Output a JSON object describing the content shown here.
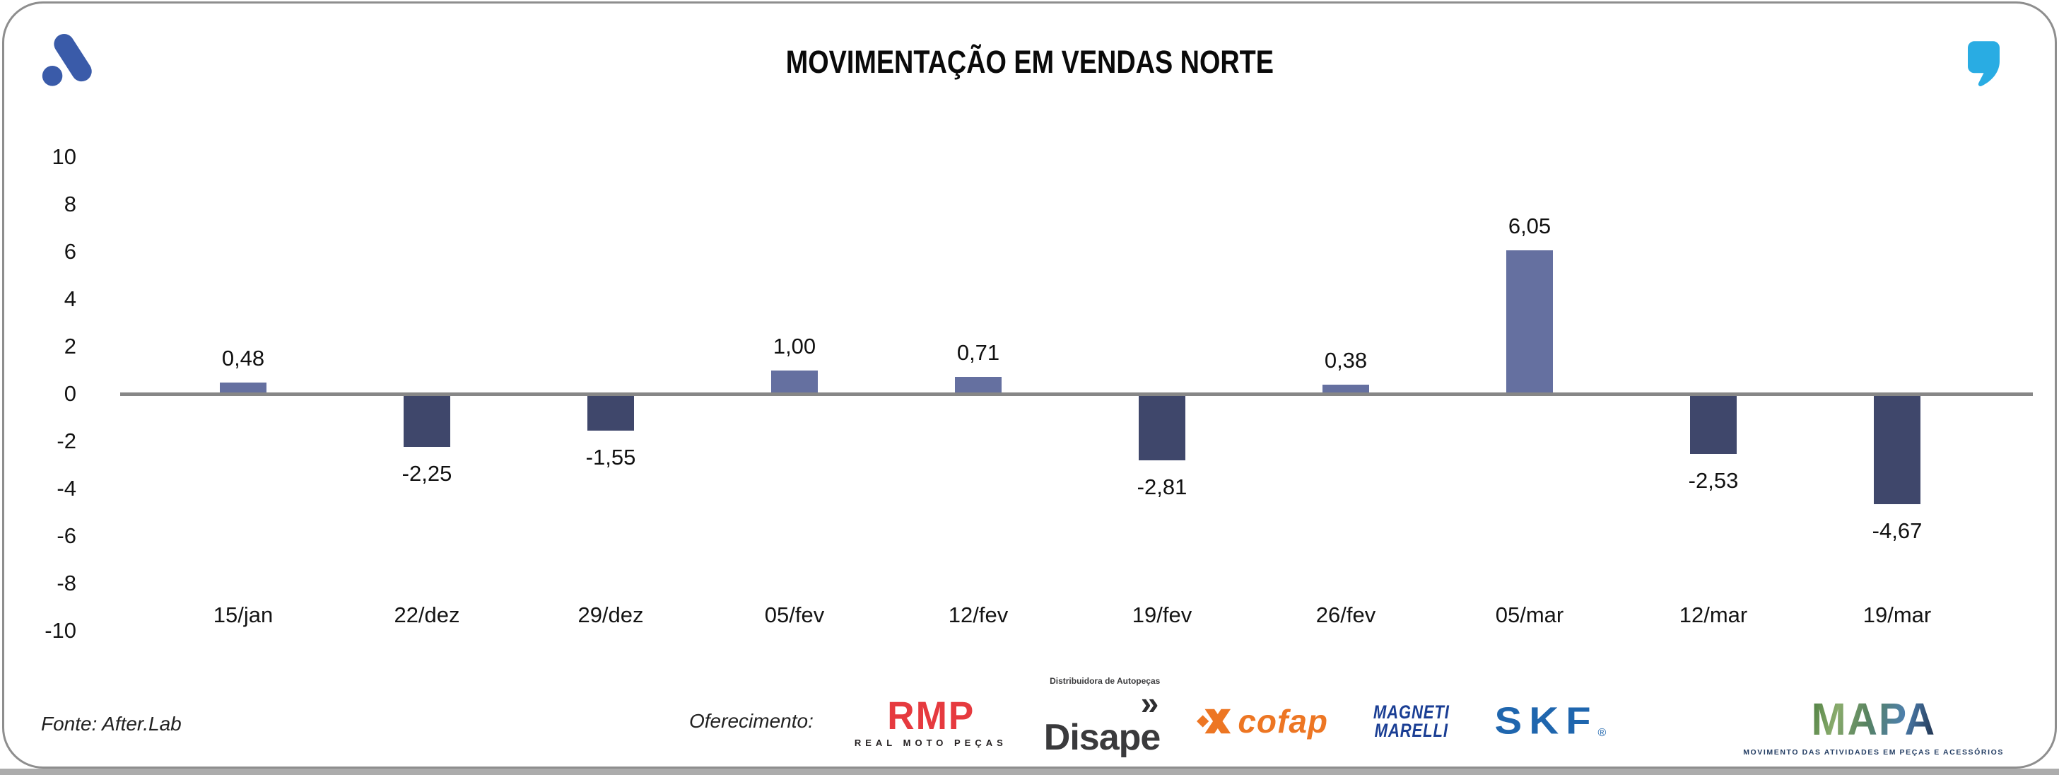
{
  "header": {
    "title": "MOVIMENTAÇÃO EM VENDAS NORTE"
  },
  "chart_data": {
    "type": "bar",
    "title": "MOVIMENTAÇÃO EM VENDAS NORTE",
    "categories": [
      "15/jan",
      "22/dez",
      "29/dez",
      "05/fev",
      "12/fev",
      "19/fev",
      "26/fev",
      "05/mar",
      "12/mar",
      "19/mar"
    ],
    "values": [
      0.48,
      -2.25,
      -1.55,
      1.0,
      0.71,
      -2.81,
      0.38,
      6.05,
      -2.53,
      -4.67
    ],
    "value_labels": [
      "0,48",
      "-2,25",
      "-1,55",
      "1,00",
      "0,71",
      "-2,81",
      "0,38",
      "6,05",
      "-2,53",
      "-4,67"
    ],
    "ylim": [
      -10,
      10
    ],
    "yticks": [
      10,
      8,
      6,
      4,
      2,
      0,
      -2,
      -4,
      -6,
      -8,
      -10
    ],
    "ytick_labels": [
      "10",
      "8",
      "6",
      "4",
      "2",
      "0",
      "-2",
      "-4",
      "-6",
      "-8",
      "-10"
    ],
    "grid": false,
    "legend": "none",
    "positive_color": "#6570a0",
    "negative_color": "#3f476b",
    "axis_color": "#878787"
  },
  "footer": {
    "source": "Fonte: After.Lab",
    "sponsor_label": "Oferecimento:",
    "sponsors": {
      "rmp": {
        "name": "RMP",
        "subtext": "REAL MOTO PEÇAS",
        "color": "#e63a3f"
      },
      "disape": {
        "prefix": "»",
        "name": "Disape",
        "subtext": "Distribuidora de Autopeças",
        "color": "#3a3a3c"
      },
      "cofap": {
        "name": "cofap",
        "color": "#ed7623"
      },
      "magneti": {
        "line1": "MAGNETI",
        "line2": "MARELLI",
        "color": "#1a3e94"
      },
      "skf": {
        "name": "SKF",
        "reg": "®",
        "color": "#1f66ae"
      },
      "mapa": {
        "name": "MAPA",
        "subtext": "MOVIMENTO DAS ATIVIDADES EM PEÇAS E ACESSÓRIOS"
      }
    }
  },
  "branding": {
    "top_left_logo": "afterlab-mark",
    "top_left_color": "#3a5ba9",
    "top_right_icon": "quote-mark",
    "top_right_color": "#29ace3"
  }
}
